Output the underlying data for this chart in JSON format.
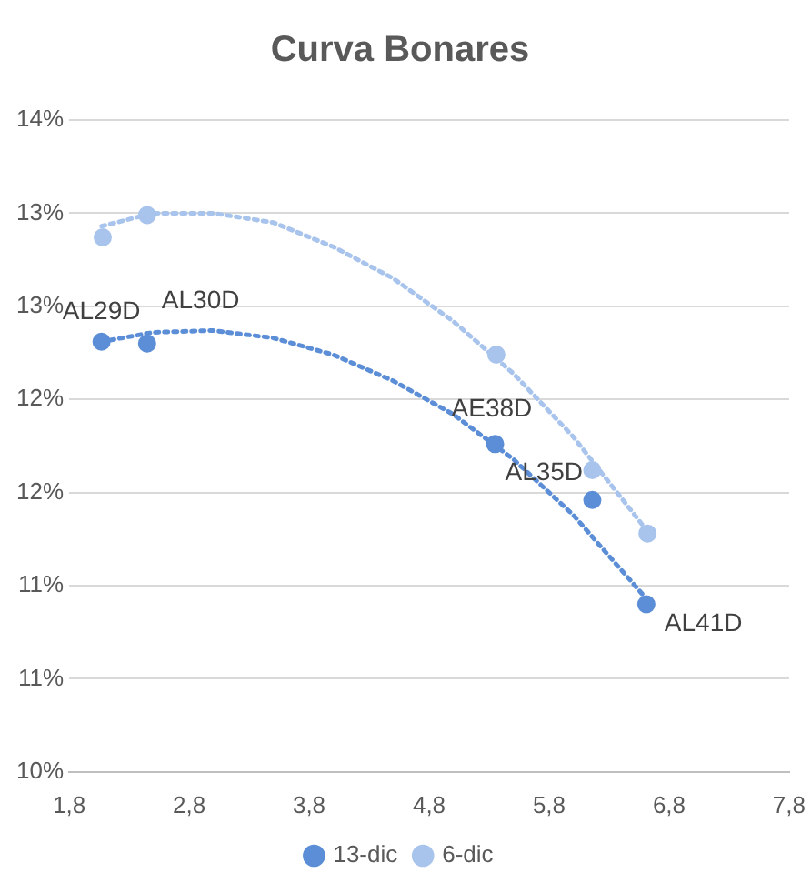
{
  "chart_data": {
    "type": "scatter",
    "title": "Curva Bonares",
    "series": [
      {
        "name": "13-dic",
        "color": "#5b8ed6",
        "type": "scatter",
        "marker": "circle",
        "x": [
          2.07,
          2.45,
          5.35,
          6.16,
          6.61
        ],
        "values": [
          12.31,
          12.3,
          11.76,
          11.46,
          10.9
        ]
      },
      {
        "name": "6-dic",
        "color": "#a8c4ec",
        "type": "scatter",
        "marker": "circle",
        "x": [
          2.08,
          2.45,
          5.36,
          6.16,
          6.62
        ],
        "values": [
          12.87,
          12.99,
          12.24,
          11.62,
          11.28
        ]
      },
      {
        "color": "#5b8ed6",
        "type": "line",
        "line_style": "dotted",
        "marker": "none",
        "x": [
          2.07,
          2.5,
          3.0,
          3.5,
          4.0,
          4.5,
          5.0,
          5.5,
          6.0,
          6.61
        ],
        "values": [
          12.31,
          12.36,
          12.37,
          12.33,
          12.24,
          12.1,
          11.92,
          11.68,
          11.38,
          10.93
        ]
      },
      {
        "color": "#a8c4ec",
        "type": "line",
        "line_style": "dotted",
        "marker": "none",
        "x": [
          2.07,
          2.5,
          3.0,
          3.5,
          4.0,
          4.5,
          5.0,
          5.5,
          6.0,
          6.61
        ],
        "values": [
          12.93,
          13.0,
          13.0,
          12.95,
          12.82,
          12.65,
          12.42,
          12.14,
          11.8,
          11.3
        ]
      }
    ],
    "annotations": [
      {
        "text": "AL29D",
        "x": 2.07,
        "y": 12.31
      },
      {
        "text": "AL30D",
        "x": 2.45,
        "y": 12.3
      },
      {
        "text": "AE38D",
        "x": 5.35,
        "y": 11.76
      },
      {
        "text": "AL35D",
        "x": 6.16,
        "y": 11.46
      },
      {
        "text": "AL41D",
        "x": 6.61,
        "y": 10.9
      }
    ],
    "xlim": [
      1.8,
      7.8
    ],
    "xticks": [
      {
        "value": 1.8,
        "label": "1,8"
      },
      {
        "value": 2.8,
        "label": "2,8"
      },
      {
        "value": 3.8,
        "label": "3,8"
      },
      {
        "value": 4.8,
        "label": "4,8"
      },
      {
        "value": 5.8,
        "label": "5,8"
      },
      {
        "value": 6.8,
        "label": "6,8"
      },
      {
        "value": 7.8,
        "label": "7,8"
      }
    ],
    "ylim": [
      10,
      13.5
    ],
    "yticks": [
      {
        "value": 10,
        "label": "10%"
      },
      {
        "value": 10.5,
        "label": "11%"
      },
      {
        "value": 11,
        "label": "11%"
      },
      {
        "value": 11.5,
        "label": "12%"
      },
      {
        "value": 12,
        "label": "12%"
      },
      {
        "value": 12.5,
        "label": "13%"
      },
      {
        "value": 13,
        "label": "13%"
      },
      {
        "value": 13.5,
        "label": "14%"
      }
    ],
    "grid": "y",
    "legend": "bottom"
  }
}
